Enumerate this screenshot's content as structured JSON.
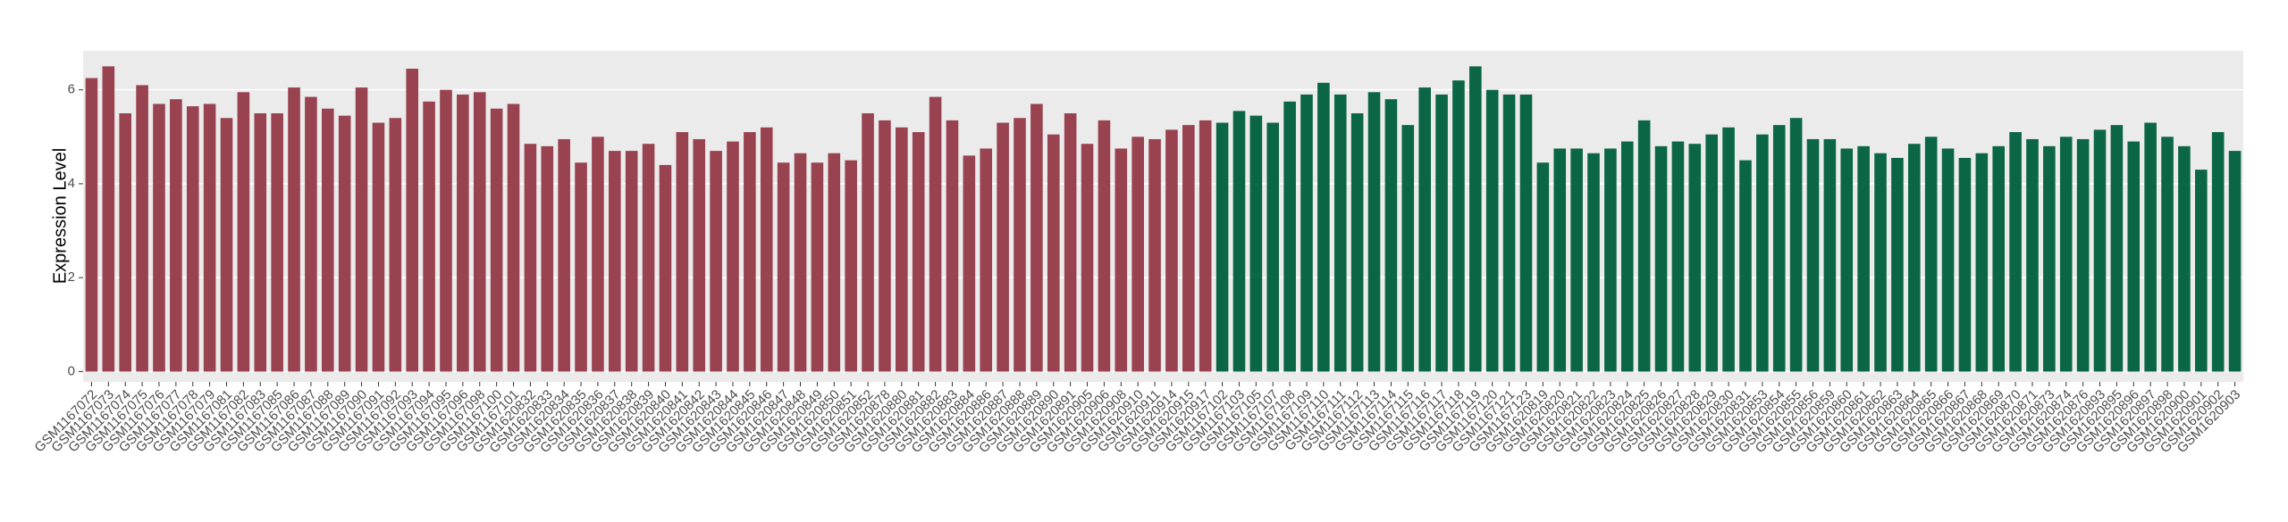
{
  "chart_data": {
    "type": "bar",
    "y_label": "Expression Level",
    "categories": [
      "GSM1167072",
      "GSM1167073",
      "GSM1167074",
      "GSM1167075",
      "GSM1167076",
      "GSM1167077",
      "GSM1167078",
      "GSM1167079",
      "GSM1167081",
      "GSM1167082",
      "GSM1167083",
      "GSM1167085",
      "GSM1167086",
      "GSM1167087",
      "GSM1167088",
      "GSM1167089",
      "GSM1167090",
      "GSM1167091",
      "GSM1167092",
      "GSM1167093",
      "GSM1167094",
      "GSM1167095",
      "GSM1167096",
      "GSM1167098",
      "GSM1167100",
      "GSM1167101",
      "GSM1620832",
      "GSM1620833",
      "GSM1620834",
      "GSM1620835",
      "GSM1620836",
      "GSM1620837",
      "GSM1620838",
      "GSM1620839",
      "GSM1620840",
      "GSM1620841",
      "GSM1620842",
      "GSM1620843",
      "GSM1620844",
      "GSM1620845",
      "GSM1620846",
      "GSM1620847",
      "GSM1620848",
      "GSM1620849",
      "GSM1620850",
      "GSM1620851",
      "GSM1620852",
      "GSM1620878",
      "GSM1620880",
      "GSM1620881",
      "GSM1620882",
      "GSM1620883",
      "GSM1620884",
      "GSM1620886",
      "GSM1620887",
      "GSM1620888",
      "GSM1620889",
      "GSM1620890",
      "GSM1620891",
      "GSM1620905",
      "GSM1620906",
      "GSM1620908",
      "GSM1620910",
      "GSM1620911",
      "GSM1620914",
      "GSM1620915",
      "GSM1620917",
      "GSM1167102",
      "GSM1167103",
      "GSM1167105",
      "GSM1167107",
      "GSM1167108",
      "GSM1167109",
      "GSM1167110",
      "GSM1167111",
      "GSM1167112",
      "GSM1167113",
      "GSM1167114",
      "GSM1167115",
      "GSM1167116",
      "GSM1167117",
      "GSM1167118",
      "GSM1167119",
      "GSM1167120",
      "GSM1167121",
      "GSM1167123",
      "GSM1620819",
      "GSM1620820",
      "GSM1620821",
      "GSM1620822",
      "GSM1620823",
      "GSM1620824",
      "GSM1620825",
      "GSM1620826",
      "GSM1620827",
      "GSM1620828",
      "GSM1620829",
      "GSM1620830",
      "GSM1620831",
      "GSM1620853",
      "GSM1620854",
      "GSM1620855",
      "GSM1620856",
      "GSM1620859",
      "GSM1620860",
      "GSM1620861",
      "GSM1620862",
      "GSM1620863",
      "GSM1620864",
      "GSM1620865",
      "GSM1620866",
      "GSM1620867",
      "GSM1620868",
      "GSM1620869",
      "GSM1620870",
      "GSM1620871",
      "GSM1620873",
      "GSM1620874",
      "GSM1620876",
      "GSM1620893",
      "GSM1620895",
      "GSM1620896",
      "GSM1620897",
      "GSM1620898",
      "GSM1620900",
      "GSM1620901",
      "GSM1620902",
      "GSM1620903"
    ],
    "series": [
      {
        "color": "#994350",
        "values": [
          6.25,
          6.5,
          5.5,
          6.1,
          5.7,
          5.8,
          5.65,
          5.7,
          5.4,
          5.95,
          5.5,
          5.5,
          6.05,
          5.85,
          5.6,
          5.45,
          6.05,
          5.3,
          5.4,
          6.45,
          5.75,
          6.0,
          5.9,
          5.95,
          5.6,
          5.7,
          4.85,
          4.8,
          4.95,
          4.45,
          5.0,
          4.7,
          4.7,
          4.85,
          4.4,
          5.1,
          4.95,
          4.7,
          4.9,
          5.1,
          5.2,
          4.45,
          4.65,
          4.45,
          4.65,
          4.5,
          5.5,
          5.35,
          5.2,
          5.1,
          5.85,
          5.35,
          4.6,
          4.75,
          5.3,
          5.4,
          5.7,
          5.05,
          5.5,
          4.85,
          5.35,
          4.75,
          5.0,
          4.95,
          5.15,
          5.25,
          5.35,
          null,
          null,
          null,
          null,
          null,
          null,
          null,
          null,
          null,
          null,
          null,
          null,
          null,
          null,
          null,
          null,
          null,
          null,
          null,
          null,
          null,
          null,
          null,
          null,
          null,
          null,
          null,
          null,
          null,
          null,
          null,
          null,
          null,
          null,
          null,
          null,
          null,
          null,
          null,
          null,
          null,
          null,
          null,
          null,
          null,
          null,
          null,
          null,
          null,
          null,
          null,
          null,
          null,
          null,
          null,
          null,
          null,
          null,
          null,
          null,
          null
        ]
      },
      {
        "color": "#0b6646",
        "values": [
          null,
          null,
          null,
          null,
          null,
          null,
          null,
          null,
          null,
          null,
          null,
          null,
          null,
          null,
          null,
          null,
          null,
          null,
          null,
          null,
          null,
          null,
          null,
          null,
          null,
          null,
          null,
          null,
          null,
          null,
          null,
          null,
          null,
          null,
          null,
          null,
          null,
          null,
          null,
          null,
          null,
          null,
          null,
          null,
          null,
          null,
          null,
          null,
          null,
          null,
          null,
          null,
          null,
          null,
          null,
          null,
          null,
          null,
          null,
          null,
          null,
          null,
          null,
          null,
          null,
          null,
          null,
          5.3,
          5.55,
          5.45,
          5.3,
          5.75,
          5.9,
          6.15,
          5.9,
          5.5,
          5.95,
          5.8,
          5.25,
          6.05,
          5.9,
          6.2,
          6.5,
          6.0,
          5.9,
          5.9,
          4.45,
          4.75,
          4.75,
          4.65,
          4.75,
          4.9,
          5.35,
          4.8,
          4.9,
          4.85,
          5.05,
          5.2,
          4.5,
          5.05,
          5.25,
          5.4,
          4.95,
          4.95,
          4.75,
          4.8,
          4.65,
          4.55,
          4.85,
          5.0,
          4.75,
          4.55,
          4.65,
          4.8,
          5.1,
          4.95,
          4.8,
          5.0,
          4.95,
          5.15,
          5.25,
          4.9,
          5.3,
          5.0,
          4.8,
          4.3,
          5.1,
          4.7
        ]
      }
    ],
    "ylim": [
      -0.22,
      6.83
    ],
    "yticks": [
      0,
      2,
      4,
      6
    ],
    "grid": true
  }
}
